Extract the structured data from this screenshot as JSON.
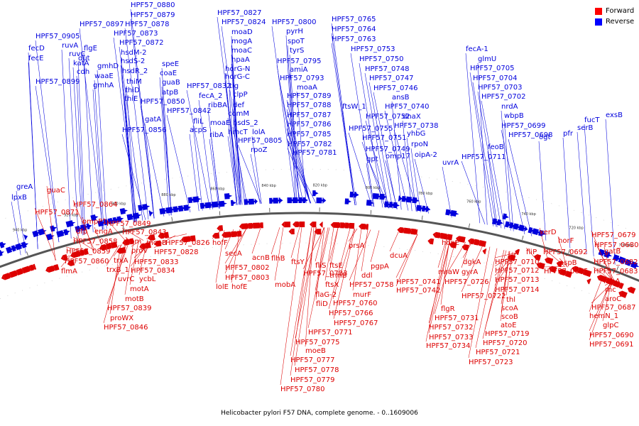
{
  "caption": "Helicobacter pylori F57 DNA, complete genome. - 0..1609006",
  "legend": [
    {
      "label": "Forward",
      "color": "#ff0000"
    },
    {
      "label": "Reverse",
      "color": "#0000ff"
    }
  ],
  "colors": {
    "forward": "#dd0000",
    "reverse": "#0000dd",
    "backbone": "#888888"
  },
  "position_ticks": [
    "940 kbp",
    "920 kbp",
    "900 kbp",
    "880 kbp",
    "860 kbp",
    "840 kbp",
    "820 kbp",
    "800 kbp",
    "780 kbp",
    "760 kbp",
    "740 kbp",
    "720 kbp",
    "700 kbp"
  ],
  "reverse_genes": [
    "HPF57_0880",
    "HPF57_0879",
    "HPF57_0878",
    "HPF57_0897",
    "HPF57_0873",
    "HPF57_0905",
    "HPF57_0872",
    "fecD",
    "ruvA",
    "fecE",
    "ruvC",
    "flgE",
    "hsdM-2",
    "katA",
    "dut",
    "hsdS-2",
    "cdh",
    "gmhD",
    "hsdR_2",
    "HPF57_0899",
    "waaE",
    "thiM",
    "gmhA",
    "thiD",
    "thiE",
    "speE",
    "coaE",
    "guaB",
    "atpB",
    "HPF57_0850",
    "gatA",
    "HPF57_0842",
    "HPF57_0856",
    "HPF57_0827",
    "HPF57_0824",
    "moaD",
    "mogA",
    "moaC",
    "hpaA",
    "horG-N",
    "horG-C",
    "HPF57_0832",
    "tig",
    "fecA_2",
    "clpP",
    "ribBA",
    "def",
    "fliL",
    "comM",
    "acpS",
    "moaE",
    "hsdS_2",
    "ribA",
    "hmcT",
    "lolA",
    "HPF57_0805",
    "rpoZ",
    "HPF57_0800",
    "pyrH",
    "spoT",
    "tyrS",
    "HPF57_0795",
    "amiA",
    "HPF57_0793",
    "moaA",
    "HPF57_0789",
    "HPF57_0788",
    "HPF57_0787",
    "HPF57_0786",
    "HPF57_0785",
    "HPF57_0782",
    "HPF57_0781",
    "HPF57_0765",
    "HPF57_0764",
    "HPF57_0763",
    "HPF57_0753",
    "HPF57_0750",
    "HPF57_0748",
    "HPF57_0747",
    "HPF57_0746",
    "ftsW_1",
    "ansB",
    "HPF57_0740",
    "HPF57_0752",
    "dnaX",
    "HPF57_0755",
    "HPF57_0738",
    "HPF57_0751",
    "yhbG",
    "HPF57_0749",
    "rpoN",
    "gpt",
    "omp17",
    "oipA-2",
    "uvrA",
    "fecA-1",
    "glmU",
    "HPF57_0705",
    "HPF57_0704",
    "HPF57_0703",
    "HPF57_0702",
    "nrdA",
    "wbpB",
    "HPF57_0699",
    "HPF57_0698",
    "ogt",
    "feoB",
    "HPF57_0711",
    "fucT",
    "exsB",
    "serB",
    "pfr",
    "greA",
    "lpxB"
  ],
  "forward_genes": [
    "guaC",
    "HPF57_0871",
    "HPF57_0864",
    "ompP1",
    "dfp",
    "engA",
    "HPF57_0858",
    "HPF57_0859",
    "HPF57_0860",
    "flmA",
    "HPF57_0849",
    "HPF57_0843",
    "hom",
    "moeB",
    "proV",
    "HPF57_0826",
    "HPF57_0828",
    "HPF57_0833",
    "HPF57_0834",
    "trxA",
    "trxB_1",
    "uvrC",
    "ycbL",
    "motA",
    "motB",
    "HPF57_0839",
    "proWX",
    "HPF57_0846",
    "hofF",
    "secA",
    "acnB",
    "HPF57_0802",
    "HPF57_0803",
    "lolE",
    "hofE",
    "flhB",
    "ftsY",
    "HPF57_0783",
    "mobA",
    "prsA",
    "pgpA",
    "ddl",
    "fliS",
    "ftsE",
    "trmB",
    "ftsX",
    "HPF57_0758",
    "murF",
    "flaG-2",
    "HPF57_0760",
    "fliD",
    "HPF57_0766",
    "HPF57_0767",
    "HPF57_0771",
    "HPF57_0775",
    "moeB",
    "HPF57_0777",
    "HPF57_0778",
    "HPF57_0779",
    "HPF57_0780",
    "dcuA",
    "HPF57_0741",
    "HPF57_0742",
    "hopE",
    "dgkA",
    "mraW",
    "gyrA",
    "HPF57_0726",
    "HPF57_0722",
    "flgR",
    "HPF57_0731",
    "HPF57_0732",
    "HPF57_0733",
    "HPF57_0734",
    "fliP",
    "HPF57_0710",
    "HPF57_0712",
    "HPF57_0713",
    "HPF57_0714",
    "thl",
    "scoA",
    "scoB",
    "atoE",
    "HPF57_0719",
    "HPF57_0720",
    "HPF57_0721",
    "HPF57_0723",
    "xerD",
    "HPF57_0679",
    "horF",
    "HPF57_0680",
    "HPF57_0692",
    "gatB",
    "aspB",
    "HPF57_0682",
    "HPF57_0695",
    "HPF57_0683",
    "rnhA",
    "rnc",
    "aroC",
    "HPF57_0687",
    "hemN_1",
    "glpC",
    "HPF57_0690",
    "HPF57_0691"
  ]
}
